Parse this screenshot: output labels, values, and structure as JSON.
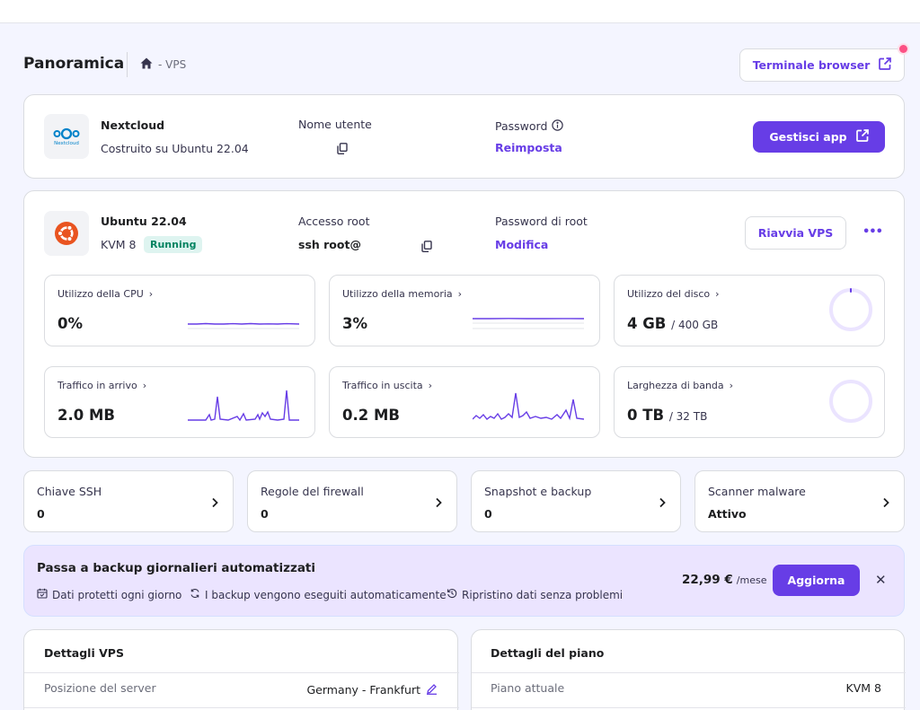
{
  "header": {
    "title": "Panoramica",
    "breadcrumb": "- VPS",
    "terminal_button": "Terminale browser"
  },
  "app": {
    "name": "Nextcloud",
    "logo_text": "Nextcloud",
    "built_on": "Costruito su Ubuntu 22.04",
    "username_label": "Nome utente",
    "password_label": "Password",
    "password_action": "Reimposta",
    "manage_button": "Gestisci app"
  },
  "vps": {
    "os_name": "Ubuntu 22.04",
    "plan": "KVM 8",
    "status": "Running",
    "root_access_label": "Accesso root",
    "root_access_value": "ssh root@",
    "root_password_label": "Password di root",
    "root_password_action": "Modifica",
    "restart_button": "Riavvia VPS",
    "more_label": "•••"
  },
  "metrics": [
    {
      "label": "Utilizzo della CPU",
      "value": "0%",
      "unit": ""
    },
    {
      "label": "Utilizzo della memoria",
      "value": "3%",
      "unit": ""
    },
    {
      "label": "Utilizzo del disco",
      "value": "4 GB",
      "unit": "/ 400 GB"
    },
    {
      "label": "Traffico in arrivo",
      "value": "2.0 MB",
      "unit": ""
    },
    {
      "label": "Traffico in uscita",
      "value": "0.2 MB",
      "unit": ""
    },
    {
      "label": "Larghezza di banda",
      "value": "0 TB",
      "unit": "/ 32 TB"
    }
  ],
  "quick_links": [
    {
      "title": "Chiave SSH",
      "value": "0"
    },
    {
      "title": "Regole del firewall",
      "value": "0"
    },
    {
      "title": "Snapshot e backup",
      "value": "0"
    },
    {
      "title": "Scanner malware",
      "value": "Attivo"
    }
  ],
  "promo": {
    "title": "Passa a backup giornalieri automatizzati",
    "features": [
      "Dati protetti ogni giorno",
      "I backup vengono eseguiti automaticamente",
      "Ripristino dati senza problemi"
    ],
    "price": "22,99 €",
    "period": "/mese",
    "button": "Aggiorna",
    "close": "✕"
  },
  "vps_details": {
    "title": "Dettagli VPS",
    "server_location_label": "Posizione del server",
    "server_location_value": "Germany - Frankfurt"
  },
  "plan_details": {
    "title": "Dettagli del piano",
    "current_plan_label": "Piano attuale",
    "current_plan_value": "KVM 8"
  },
  "colors": {
    "accent": "#673de6",
    "badge_bg": "#def4f0",
    "badge_text": "#008361",
    "promo_bg": "#ebe4ff",
    "notification_dot": "#fc5185"
  }
}
